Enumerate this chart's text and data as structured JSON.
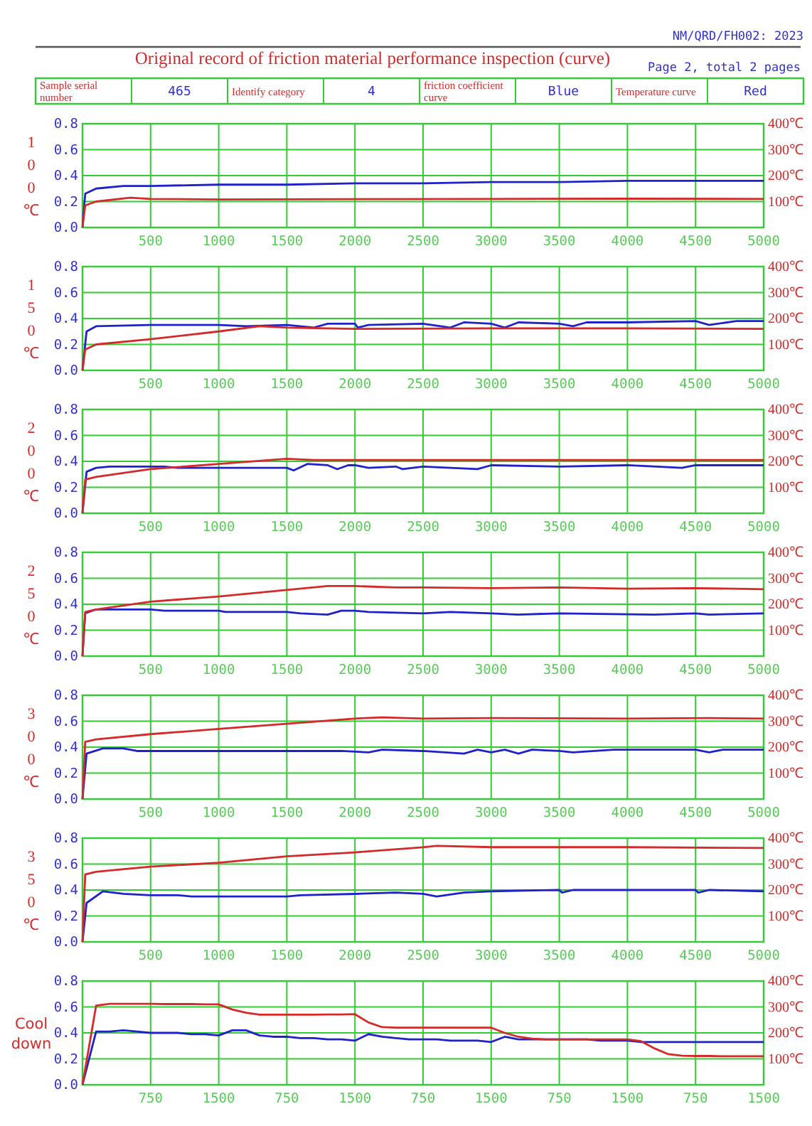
{
  "chart_data": [
    {
      "type": "line",
      "title": "Original record of friction material performance inspection (curve)",
      "annotations": [
        "NM/QRD/FH002: 2023",
        "Page 2, total 2 pages",
        "Sample serial number",
        "465",
        "Identify category",
        "4",
        "friction coefficient curve",
        "Blue",
        "Temperature curve",
        "Red"
      ],
      "ylabel": "100℃",
      "grid": true,
      "xlim": [
        0,
        5000
      ],
      "xticks": [
        500,
        1000,
        1500,
        2000,
        2500,
        3000,
        3500,
        4000,
        4500,
        5000
      ],
      "ylim": [
        0,
        0.8
      ],
      "yticks": [
        {
          "value": 0,
          "label": "0.0"
        },
        {
          "value": 0.2,
          "label": "0.2"
        },
        {
          "value": 0.4,
          "label": "0.4"
        },
        {
          "value": 0.6,
          "label": "0.6"
        },
        {
          "value": 0.8,
          "label": "0.8"
        }
      ],
      "y2lim": [
        0,
        400
      ],
      "y2ticks": [
        {
          "value": 100,
          "label": "100℃"
        },
        {
          "value": 200,
          "label": "200℃"
        },
        {
          "value": 300,
          "label": "300℃"
        },
        {
          "value": 400,
          "label": "400℃"
        }
      ],
      "series": [
        {
          "color": "#1f22c8",
          "x": [
            0,
            20,
            100,
            300,
            500,
            1000,
            1500,
            2000,
            2500,
            3000,
            3500,
            4000,
            4500,
            5000
          ],
          "values": [
            0,
            0.26,
            0.3,
            0.32,
            0.32,
            0.33,
            0.33,
            0.34,
            0.34,
            0.35,
            0.35,
            0.36,
            0.36,
            0.36
          ]
        },
        {
          "color": "#d42a2a",
          "axis": "y2",
          "x": [
            0,
            20,
            100,
            350,
            500,
            1000,
            2000,
            3000,
            4000,
            5000
          ],
          "values": [
            0,
            85,
            100,
            115,
            110,
            108,
            109,
            110,
            111,
            110
          ]
        }
      ]
    },
    {
      "type": "line",
      "ylabel": "150℃",
      "grid": true,
      "xlim": [
        0,
        5000
      ],
      "xticks": [
        500,
        1000,
        1500,
        2000,
        2500,
        3000,
        3500,
        4000,
        4500,
        5000
      ],
      "ylim": [
        0,
        0.8
      ],
      "yticks": [
        {
          "value": 0,
          "label": "0.0"
        },
        {
          "value": 0.2,
          "label": "0.2"
        },
        {
          "value": 0.4,
          "label": "0.4"
        },
        {
          "value": 0.6,
          "label": "0.6"
        },
        {
          "value": 0.8,
          "label": "0.8"
        }
      ],
      "y2lim": [
        0,
        400
      ],
      "y2ticks": [
        {
          "value": 100,
          "label": "100℃"
        },
        {
          "value": 200,
          "label": "200℃"
        },
        {
          "value": 300,
          "label": "300℃"
        },
        {
          "value": 400,
          "label": "400℃"
        }
      ],
      "series": [
        {
          "color": "#1f22c8",
          "x": [
            0,
            30,
            100,
            500,
            1000,
            1200,
            1500,
            1700,
            1800,
            2000,
            2020,
            2100,
            2500,
            2700,
            2800,
            3000,
            3100,
            3200,
            3500,
            3600,
            3700,
            4000,
            4500,
            4600,
            4800,
            5000
          ],
          "values": [
            0,
            0.3,
            0.34,
            0.35,
            0.35,
            0.34,
            0.35,
            0.33,
            0.36,
            0.36,
            0.33,
            0.35,
            0.36,
            0.33,
            0.37,
            0.36,
            0.33,
            0.37,
            0.36,
            0.34,
            0.37,
            0.37,
            0.38,
            0.35,
            0.38,
            0.38
          ]
        },
        {
          "color": "#d42a2a",
          "axis": "y2",
          "x": [
            0,
            20,
            100,
            500,
            1000,
            1300,
            1500,
            2000,
            3000,
            4000,
            5000
          ],
          "values": [
            0,
            80,
            100,
            120,
            150,
            170,
            165,
            160,
            162,
            162,
            160
          ]
        }
      ]
    },
    {
      "type": "line",
      "ylabel": "200℃",
      "grid": true,
      "xlim": [
        0,
        5000
      ],
      "xticks": [
        500,
        1000,
        1500,
        2000,
        2500,
        3000,
        3500,
        4000,
        4500,
        5000
      ],
      "ylim": [
        0,
        0.8
      ],
      "yticks": [
        {
          "value": 0,
          "label": "0.0"
        },
        {
          "value": 0.2,
          "label": "0.2"
        },
        {
          "value": 0.4,
          "label": "0.4"
        },
        {
          "value": 0.6,
          "label": "0.6"
        },
        {
          "value": 0.8,
          "label": "0.8"
        }
      ],
      "y2lim": [
        0,
        400
      ],
      "y2ticks": [
        {
          "value": 100,
          "label": "100℃"
        },
        {
          "value": 200,
          "label": "200℃"
        },
        {
          "value": 300,
          "label": "300℃"
        },
        {
          "value": 400,
          "label": "400℃"
        }
      ],
      "series": [
        {
          "color": "#1f22c8",
          "x": [
            0,
            30,
            100,
            200,
            600,
            700,
            1500,
            1550,
            1650,
            1800,
            1870,
            1950,
            2000,
            2100,
            2300,
            2350,
            2500,
            2900,
            3000,
            3500,
            4000,
            4400,
            4500,
            5000
          ],
          "values": [
            0,
            0.32,
            0.35,
            0.36,
            0.36,
            0.35,
            0.35,
            0.33,
            0.38,
            0.37,
            0.34,
            0.37,
            0.37,
            0.35,
            0.36,
            0.34,
            0.36,
            0.34,
            0.37,
            0.36,
            0.37,
            0.35,
            0.37,
            0.37
          ]
        },
        {
          "color": "#d42a2a",
          "axis": "y2",
          "x": [
            0,
            20,
            100,
            500,
            1000,
            1500,
            1700,
            3000,
            4000,
            5000
          ],
          "values": [
            0,
            130,
            140,
            170,
            190,
            210,
            205,
            205,
            205,
            205
          ]
        }
      ]
    },
    {
      "type": "line",
      "ylabel": "250℃",
      "grid": true,
      "xlim": [
        0,
        5000
      ],
      "xticks": [
        500,
        1000,
        1500,
        2000,
        2500,
        3000,
        3500,
        4000,
        4500,
        5000
      ],
      "ylim": [
        0,
        0.8
      ],
      "yticks": [
        {
          "value": 0,
          "label": "0.0"
        },
        {
          "value": 0.2,
          "label": "0.2"
        },
        {
          "value": 0.4,
          "label": "0.4"
        },
        {
          "value": 0.6,
          "label": "0.6"
        },
        {
          "value": 0.8,
          "label": "0.8"
        }
      ],
      "y2lim": [
        0,
        400
      ],
      "y2ticks": [
        {
          "value": 100,
          "label": "100℃"
        },
        {
          "value": 200,
          "label": "200℃"
        },
        {
          "value": 300,
          "label": "300℃"
        },
        {
          "value": 400,
          "label": "400℃"
        }
      ],
      "series": [
        {
          "color": "#1f22c8",
          "x": [
            0,
            20,
            100,
            500,
            600,
            1000,
            1050,
            1500,
            1600,
            1800,
            1900,
            2000,
            2100,
            2500,
            2700,
            3000,
            3200,
            3500,
            4200,
            4500,
            4600,
            5000
          ],
          "values": [
            0,
            0.33,
            0.36,
            0.36,
            0.35,
            0.35,
            0.34,
            0.34,
            0.33,
            0.32,
            0.35,
            0.35,
            0.34,
            0.33,
            0.34,
            0.33,
            0.32,
            0.33,
            0.32,
            0.33,
            0.32,
            0.33
          ]
        },
        {
          "color": "#d42a2a",
          "axis": "y2",
          "x": [
            0,
            20,
            100,
            500,
            1000,
            1500,
            1800,
            2000,
            2300,
            2500,
            3000,
            3500,
            4000,
            4500,
            5000
          ],
          "values": [
            0,
            170,
            180,
            210,
            230,
            255,
            270,
            270,
            265,
            265,
            262,
            265,
            260,
            262,
            258
          ]
        }
      ]
    },
    {
      "type": "line",
      "ylabel": "300℃",
      "grid": true,
      "xlim": [
        0,
        5000
      ],
      "xticks": [
        500,
        1000,
        1500,
        2000,
        2500,
        3000,
        3500,
        4000,
        4500,
        5000
      ],
      "ylim": [
        0,
        0.8
      ],
      "yticks": [
        {
          "value": 0,
          "label": "0.0"
        },
        {
          "value": 0.2,
          "label": "0.2"
        },
        {
          "value": 0.4,
          "label": "0.4"
        },
        {
          "value": 0.6,
          "label": "0.6"
        },
        {
          "value": 0.8,
          "label": "0.8"
        }
      ],
      "y2lim": [
        0,
        400
      ],
      "y2ticks": [
        {
          "value": 100,
          "label": "100℃"
        },
        {
          "value": 200,
          "label": "200℃"
        },
        {
          "value": 300,
          "label": "300℃"
        },
        {
          "value": 400,
          "label": "400℃"
        }
      ],
      "series": [
        {
          "color": "#1f22c8",
          "x": [
            0,
            30,
            150,
            300,
            400,
            1900,
            2100,
            2200,
            2500,
            2800,
            2900,
            3000,
            3100,
            3200,
            3300,
            3500,
            3600,
            3900,
            4000,
            4500,
            4600,
            4700,
            5000
          ],
          "values": [
            0,
            0.35,
            0.39,
            0.39,
            0.37,
            0.37,
            0.36,
            0.38,
            0.37,
            0.35,
            0.38,
            0.36,
            0.38,
            0.35,
            0.38,
            0.37,
            0.36,
            0.38,
            0.38,
            0.38,
            0.36,
            0.38,
            0.38
          ]
        },
        {
          "color": "#d42a2a",
          "axis": "y2",
          "x": [
            0,
            20,
            100,
            500,
            1000,
            1500,
            2000,
            2200,
            2500,
            3000,
            4000,
            4600,
            5000
          ],
          "values": [
            0,
            220,
            230,
            250,
            270,
            290,
            310,
            315,
            310,
            312,
            310,
            312,
            310
          ]
        }
      ]
    },
    {
      "type": "line",
      "ylabel": "350℃",
      "grid": true,
      "xlim": [
        0,
        5000
      ],
      "xticks": [
        500,
        1000,
        1500,
        2000,
        2500,
        3000,
        3500,
        4000,
        4500,
        5000
      ],
      "ylim": [
        0,
        0.8
      ],
      "yticks": [
        {
          "value": 0,
          "label": "0.0"
        },
        {
          "value": 0.2,
          "label": "0.2"
        },
        {
          "value": 0.4,
          "label": "0.4"
        },
        {
          "value": 0.6,
          "label": "0.6"
        },
        {
          "value": 0.8,
          "label": "0.8"
        }
      ],
      "y2lim": [
        0,
        400
      ],
      "y2ticks": [
        {
          "value": 100,
          "label": "100℃"
        },
        {
          "value": 200,
          "label": "200℃"
        },
        {
          "value": 300,
          "label": "300℃"
        },
        {
          "value": 400,
          "label": "400℃"
        }
      ],
      "series": [
        {
          "color": "#1f22c8",
          "x": [
            0,
            30,
            150,
            300,
            500,
            700,
            800,
            1500,
            1600,
            2000,
            2300,
            2500,
            2600,
            2800,
            3000,
            3500,
            3520,
            3600,
            4500,
            4520,
            4600,
            5000
          ],
          "values": [
            0,
            0.3,
            0.39,
            0.37,
            0.36,
            0.36,
            0.35,
            0.35,
            0.36,
            0.37,
            0.38,
            0.37,
            0.35,
            0.38,
            0.39,
            0.4,
            0.38,
            0.4,
            0.4,
            0.38,
            0.4,
            0.39
          ]
        },
        {
          "color": "#d42a2a",
          "axis": "y2",
          "x": [
            0,
            20,
            100,
            500,
            1000,
            1500,
            2000,
            2500,
            2600,
            3000,
            4000,
            5000
          ],
          "values": [
            0,
            260,
            270,
            290,
            305,
            330,
            345,
            365,
            370,
            365,
            365,
            362
          ]
        }
      ]
    },
    {
      "type": "line",
      "ylabel": "Cool down",
      "grid": true,
      "categories": [
        null,
        null,
        null,
        null,
        null,
        "750",
        null,
        null,
        null,
        null,
        "1500",
        null,
        null,
        null,
        null,
        "750",
        null,
        null,
        null,
        null,
        "1500",
        null,
        null,
        null,
        null,
        "750",
        null,
        null,
        null,
        null,
        "1500",
        null,
        null,
        null,
        null,
        "750",
        null,
        null,
        null,
        null,
        "1500",
        null,
        null,
        null,
        null,
        "750",
        null,
        null,
        null,
        null,
        "1500"
      ],
      "ylim": [
        0,
        0.8
      ],
      "yticks": [
        {
          "value": 0,
          "label": "0.0"
        },
        {
          "value": 0.2,
          "label": "0.2"
        },
        {
          "value": 0.4,
          "label": "0.4"
        },
        {
          "value": 0.6,
          "label": "0.6"
        },
        {
          "value": 0.8,
          "label": "0.8"
        }
      ],
      "y2lim": [
        0,
        400
      ],
      "y2ticks": [
        {
          "value": 100,
          "label": "100℃"
        },
        {
          "value": 200,
          "label": "200℃"
        },
        {
          "value": 300,
          "label": "300℃"
        },
        {
          "value": 400,
          "label": "400℃"
        }
      ],
      "series": [
        {
          "color": "#1f22c8",
          "values": [
            0,
            0.41,
            0.41,
            0.42,
            0.41,
            0.4,
            0.4,
            0.4,
            0.39,
            0.39,
            0.38,
            0.42,
            0.42,
            0.38,
            0.37,
            0.37,
            0.36,
            0.36,
            0.35,
            0.35,
            0.34,
            0.39,
            0.37,
            0.36,
            0.35,
            0.35,
            0.35,
            0.34,
            0.34,
            0.34,
            0.33,
            0.37,
            0.35,
            0.35,
            0.35,
            0.35,
            0.35,
            0.35,
            0.34,
            0.34,
            0.34,
            0.33,
            0.33,
            0.33,
            0.33,
            0.33,
            0.33,
            0.33,
            0.33,
            0.33,
            0.33
          ]
        },
        {
          "color": "#d42a2a",
          "axis": "y2",
          "values": [
            0,
            305,
            312,
            312,
            312,
            312,
            311,
            311,
            311,
            310,
            310,
            290,
            278,
            270,
            270,
            270,
            270,
            270,
            271,
            271,
            272,
            240,
            222,
            220,
            220,
            220,
            220,
            220,
            220,
            220,
            220,
            200,
            185,
            178,
            175,
            175,
            175,
            175,
            175,
            175,
            175,
            168,
            140,
            118,
            112,
            111,
            111,
            110,
            110,
            110,
            110
          ]
        }
      ]
    }
  ]
}
